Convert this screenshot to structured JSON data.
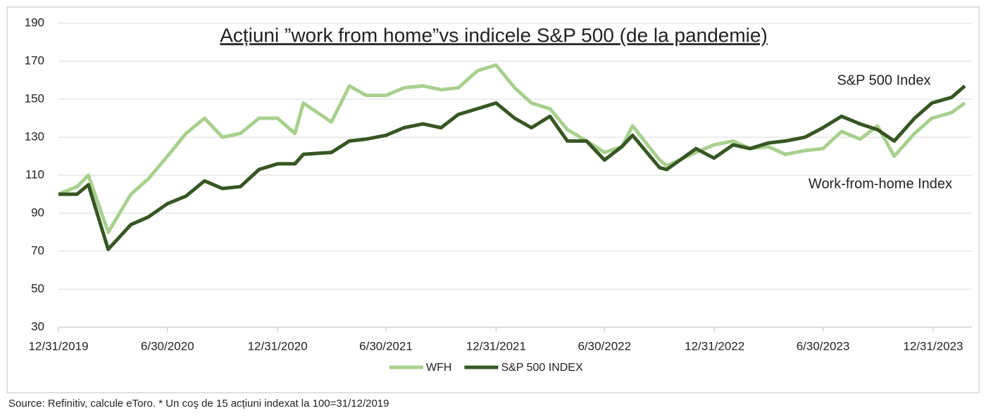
{
  "chart_data": {
    "type": "line",
    "title": "Acțiuni ”work from home”vs indicele S&P 500 (de la pandemie)",
    "annotations": [
      "S&P 500 Index",
      "Work-from-home Index"
    ],
    "source": "Source: Refinitiv, calcule eToro. * Un coş de 15 acțiuni indexat la 100=31/12/2019",
    "x": [
      "12/31/2019",
      "1/31/2020",
      "2/19/2020",
      "3/23/2020",
      "4/30/2020",
      "5/29/2020",
      "6/30/2020",
      "7/31/2020",
      "8/31/2020",
      "9/30/2020",
      "10/30/2020",
      "11/30/2020",
      "12/31/2020",
      "1/29/2021",
      "2/12/2021",
      "3/31/2021",
      "4/30/2021",
      "5/28/2021",
      "6/30/2021",
      "7/30/2021",
      "8/31/2021",
      "9/30/2021",
      "10/29/2021",
      "11/30/2021",
      "12/31/2021",
      "1/31/2022",
      "2/28/2022",
      "3/31/2022",
      "4/29/2022",
      "5/31/2022",
      "6/30/2022",
      "7/29/2022",
      "8/16/2022",
      "9/30/2022",
      "10/12/2022",
      "11/30/2022",
      "12/30/2022",
      "1/31/2023",
      "2/28/2023",
      "3/31/2023",
      "4/28/2023",
      "5/31/2023",
      "6/30/2023",
      "7/31/2023",
      "8/31/2023",
      "9/29/2023",
      "10/27/2023",
      "11/30/2023",
      "12/29/2023",
      "1/31/2024",
      "2/22/2024"
    ],
    "series": [
      {
        "name": "WFH",
        "color": "#a9d08e",
        "values": [
          100,
          104,
          110,
          80,
          100,
          108,
          120,
          132,
          140,
          130,
          132,
          140,
          140,
          132,
          148,
          138,
          157,
          152,
          152,
          156,
          157,
          155,
          156,
          165,
          168,
          156,
          148,
          145,
          134,
          128,
          122,
          125,
          136,
          118,
          115,
          122,
          126,
          128,
          124,
          125,
          121,
          123,
          124,
          133,
          129,
          136,
          120,
          132,
          140,
          143,
          148
        ]
      },
      {
        "name": "S&P 500 INDEX",
        "color": "#375623",
        "values": [
          100,
          100,
          105,
          71,
          84,
          88,
          95,
          99,
          107,
          103,
          104,
          113,
          116,
          116,
          121,
          122,
          128,
          129,
          131,
          135,
          137,
          135,
          142,
          145,
          148,
          140,
          135,
          141,
          128,
          128,
          118,
          125,
          131,
          114,
          113,
          124,
          119,
          126,
          124,
          127,
          128,
          130,
          135,
          141,
          137,
          134,
          128,
          140,
          148,
          151,
          157
        ]
      }
    ],
    "xlim": [
      "12/31/2019",
      "2/22/2024"
    ],
    "xticks": [
      "12/31/2019",
      "6/30/2020",
      "12/31/2020",
      "6/30/2021",
      "12/31/2021",
      "6/30/2022",
      "12/31/2022",
      "6/30/2023",
      "12/31/2023"
    ],
    "ylim": [
      30,
      190
    ],
    "yticks": [
      30,
      50,
      70,
      90,
      110,
      130,
      150,
      170,
      190
    ],
    "grid": true
  }
}
